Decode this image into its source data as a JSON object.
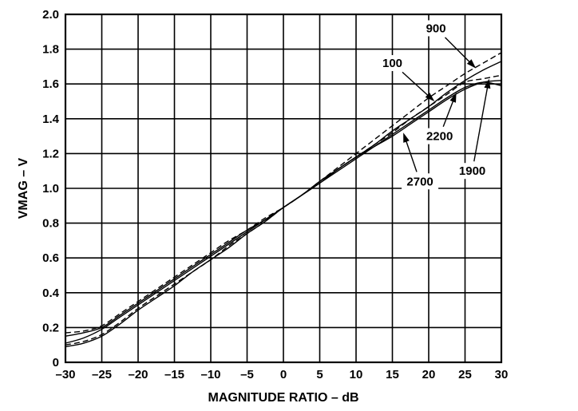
{
  "chart_data": {
    "type": "line",
    "title": "",
    "xlabel": "MAGNITUDE RATIO – dB",
    "ylabel": "VMAG – V",
    "xlim": [
      -30,
      30
    ],
    "ylim": [
      0,
      2.0
    ],
    "grid": true,
    "x_ticks": [
      "–30",
      "–25",
      "–20",
      "–15",
      "–10",
      "–5",
      "0",
      "5",
      "10",
      "15",
      "20",
      "25",
      "30"
    ],
    "y_ticks": [
      "0",
      "0.2",
      "0.4",
      "0.6",
      "0.8",
      "1.0",
      "1.2",
      "1.4",
      "1.6",
      "1.8",
      "2.0"
    ],
    "x": [
      -30,
      -27.5,
      -25,
      -22.5,
      -20,
      -17.5,
      -15,
      -12.5,
      -10,
      -7.5,
      -5,
      -2.5,
      0,
      2.5,
      5,
      7.5,
      10,
      12.5,
      15,
      17.5,
      20,
      22.5,
      25,
      27.5,
      30
    ],
    "series": [
      {
        "name": "100",
        "style": "solid",
        "values": [
          0.11,
          0.14,
          0.19,
          0.26,
          0.33,
          0.4,
          0.47,
          0.54,
          0.61,
          0.68,
          0.75,
          0.82,
          0.89,
          0.96,
          1.03,
          1.11,
          1.18,
          1.25,
          1.33,
          1.4,
          1.47,
          1.55,
          1.62,
          1.68,
          1.73
        ]
      },
      {
        "name": "900",
        "style": "dashed",
        "values": [
          0.17,
          0.18,
          0.21,
          0.28,
          0.35,
          0.42,
          0.49,
          0.56,
          0.63,
          0.7,
          0.76,
          0.83,
          0.89,
          0.96,
          1.04,
          1.12,
          1.2,
          1.28,
          1.36,
          1.44,
          1.52,
          1.59,
          1.66,
          1.72,
          1.78
        ]
      },
      {
        "name": "2200",
        "style": "dashed",
        "values": [
          0.1,
          0.12,
          0.16,
          0.23,
          0.31,
          0.38,
          0.45,
          0.52,
          0.59,
          0.67,
          0.74,
          0.81,
          0.89,
          0.96,
          1.04,
          1.11,
          1.18,
          1.25,
          1.32,
          1.4,
          1.47,
          1.54,
          1.61,
          1.63,
          1.65
        ]
      },
      {
        "name": "1900",
        "style": "solid",
        "values": [
          0.15,
          0.17,
          0.2,
          0.27,
          0.34,
          0.41,
          0.48,
          0.55,
          0.62,
          0.69,
          0.76,
          0.82,
          0.89,
          0.96,
          1.03,
          1.1,
          1.17,
          1.24,
          1.31,
          1.38,
          1.45,
          1.52,
          1.58,
          1.61,
          1.59
        ]
      },
      {
        "name": "2700",
        "style": "solid",
        "values": [
          0.09,
          0.11,
          0.15,
          0.22,
          0.3,
          0.37,
          0.44,
          0.52,
          0.59,
          0.66,
          0.74,
          0.81,
          0.89,
          0.96,
          1.04,
          1.11,
          1.18,
          1.24,
          1.3,
          1.37,
          1.44,
          1.51,
          1.57,
          1.61,
          1.62
        ]
      }
    ],
    "annotations": [
      {
        "label": "900",
        "label_at": [
          21.0,
          1.92
        ],
        "arrow_to": [
          26.5,
          1.69
        ]
      },
      {
        "label": "100",
        "label_at": [
          15.0,
          1.72
        ],
        "arrow_to": [
          20.8,
          1.5
        ]
      },
      {
        "label": "2200",
        "label_at": [
          21.5,
          1.3
        ],
        "arrow_to": [
          23.8,
          1.55
        ]
      },
      {
        "label": "1900",
        "label_at": [
          26.0,
          1.1
        ],
        "arrow_to": [
          28.3,
          1.63
        ]
      },
      {
        "label": "2700",
        "label_at": [
          18.8,
          1.04
        ],
        "arrow_to": [
          16.5,
          1.32
        ]
      }
    ]
  }
}
